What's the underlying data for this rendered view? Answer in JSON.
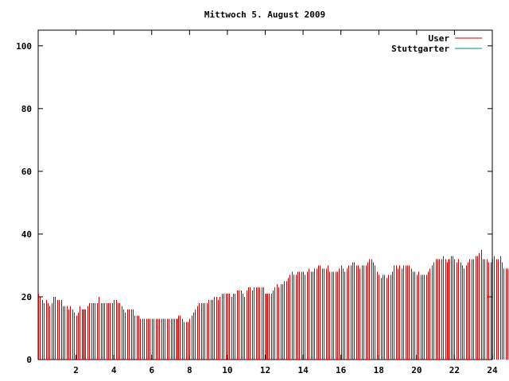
{
  "chart_data": {
    "type": "bar",
    "title": "Mittwoch 5. August 2009",
    "xlabel": "",
    "ylabel": "",
    "xlim": [
      0,
      24
    ],
    "ylim": [
      0,
      105
    ],
    "x_ticks": [
      2,
      4,
      6,
      8,
      10,
      12,
      14,
      16,
      18,
      20,
      22,
      24
    ],
    "y_ticks": [
      0,
      20,
      40,
      60,
      80,
      100
    ],
    "grid": false,
    "legend": "top-right",
    "series": [
      {
        "name": "User",
        "color": "#cc0000",
        "x_start": 0,
        "x_step": 0.1,
        "values": [
          21,
          20,
          19,
          18,
          19,
          18,
          17,
          18,
          20,
          20,
          19,
          19,
          19,
          17,
          17,
          17,
          16,
          17,
          16,
          15,
          14,
          15,
          17,
          16,
          16,
          16,
          17,
          18,
          18,
          18,
          18,
          18,
          20,
          18,
          18,
          18,
          18,
          18,
          18,
          18,
          19,
          19,
          18,
          18,
          17,
          16,
          15,
          16,
          16,
          16,
          16,
          14,
          14,
          14,
          13,
          13,
          13,
          13,
          13,
          13,
          13,
          13,
          13,
          13,
          13,
          13,
          13,
          13,
          13,
          13,
          13,
          13,
          13,
          13,
          14,
          14,
          13,
          12,
          12,
          12,
          13,
          14,
          15,
          16,
          17,
          18,
          18,
          18,
          18,
          18,
          19,
          19,
          19,
          20,
          20,
          19,
          20,
          21,
          21,
          21,
          21,
          21,
          20,
          21,
          21,
          22,
          22,
          22,
          21,
          20,
          22,
          23,
          23,
          22,
          23,
          23,
          23,
          23,
          23,
          23,
          21,
          21,
          21,
          21,
          22,
          23,
          24,
          23,
          24,
          24,
          25,
          25,
          26,
          27,
          28,
          27,
          27,
          28,
          28,
          28,
          28,
          27,
          28,
          29,
          28,
          28,
          29,
          29,
          30,
          30,
          29,
          29,
          29,
          30,
          28,
          28,
          28,
          28,
          28,
          29,
          30,
          29,
          28,
          29,
          30,
          30,
          31,
          31,
          30,
          30,
          29,
          30,
          30,
          30,
          31,
          32,
          32,
          31,
          30,
          28,
          27,
          26,
          27,
          27,
          26,
          27,
          27,
          28,
          30,
          30,
          29,
          30,
          29,
          30,
          30,
          30,
          30,
          29,
          28,
          28,
          27,
          28,
          27,
          27,
          27,
          27,
          28,
          29,
          30,
          31,
          32,
          32,
          32,
          32,
          33,
          32,
          31,
          32,
          33,
          33,
          32,
          31,
          32,
          31,
          30,
          29,
          30,
          31,
          32,
          32,
          32,
          33,
          33,
          34,
          35,
          32,
          32,
          32,
          31,
          31,
          32,
          33,
          32,
          32,
          33,
          31,
          29,
          29,
          29,
          28,
          27,
          26,
          26,
          26
        ]
      },
      {
        "name": "Stuttgarter",
        "color": "#008b8b",
        "values": []
      }
    ]
  }
}
